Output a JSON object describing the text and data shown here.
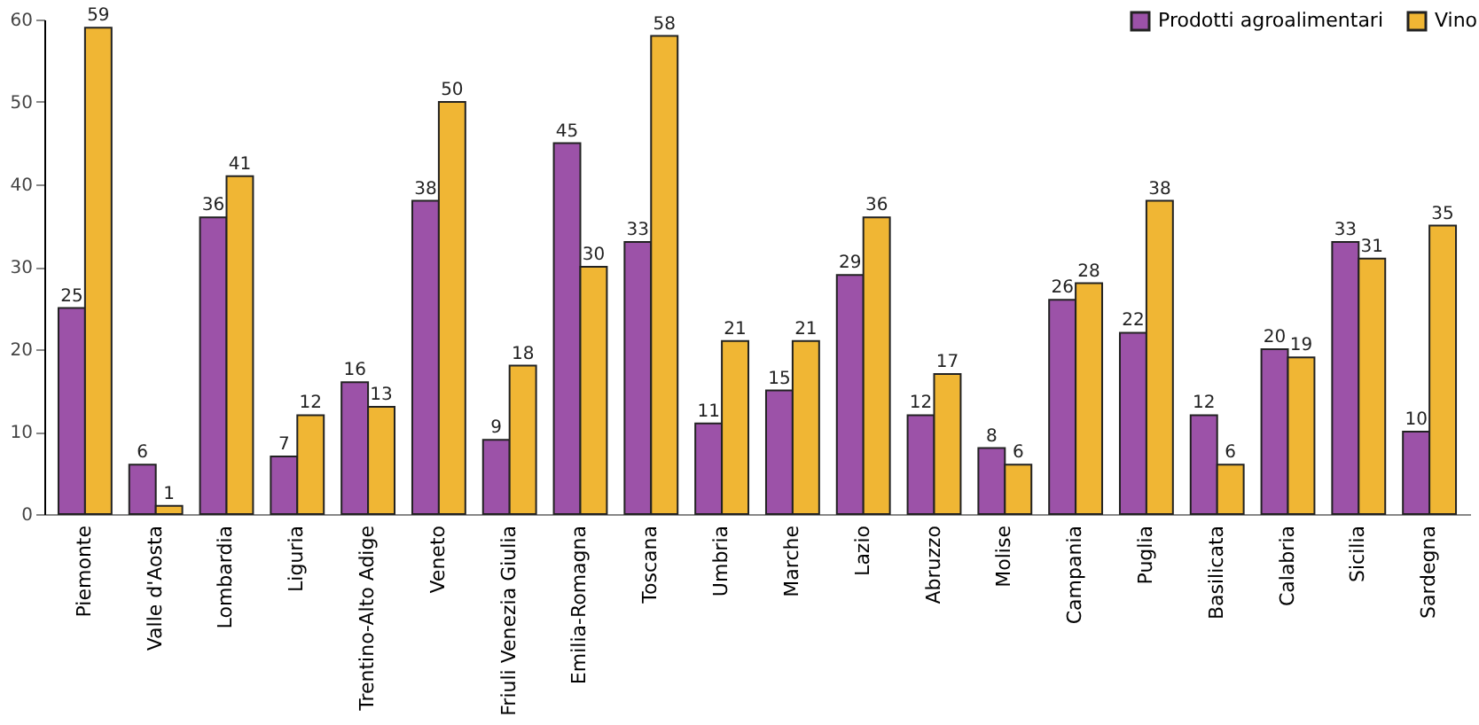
{
  "chart_data": {
    "type": "bar",
    "categories": [
      "Piemonte",
      "Valle d'Aosta",
      "Lombardia",
      "Liguria",
      "Trentino-Alto Adige",
      "Veneto",
      "Friuli Venezia Giulia",
      "Emilia-Romagna",
      "Toscana",
      "Umbria",
      "Marche",
      "Lazio",
      "Abruzzo",
      "Molise",
      "Campania",
      "Puglia",
      "Basilicata",
      "Calabria",
      "Sicilia",
      "Sardegna"
    ],
    "series": [
      {
        "name": "Prodotti agroalimentari",
        "color": "#9c52a8",
        "values": [
          25,
          6,
          36,
          7,
          16,
          38,
          9,
          45,
          33,
          11,
          15,
          29,
          12,
          8,
          26,
          22,
          12,
          20,
          33,
          10
        ]
      },
      {
        "name": "Vino",
        "color": "#f0b634",
        "values": [
          59,
          1,
          41,
          12,
          13,
          50,
          18,
          30,
          58,
          21,
          21,
          36,
          17,
          6,
          28,
          38,
          6,
          19,
          31,
          35
        ]
      }
    ],
    "ylim": [
      0,
      60
    ],
    "yticks": [
      0,
      10,
      20,
      30,
      40,
      50,
      60
    ],
    "grid": false,
    "legend": "top right",
    "data_labels": true
  }
}
